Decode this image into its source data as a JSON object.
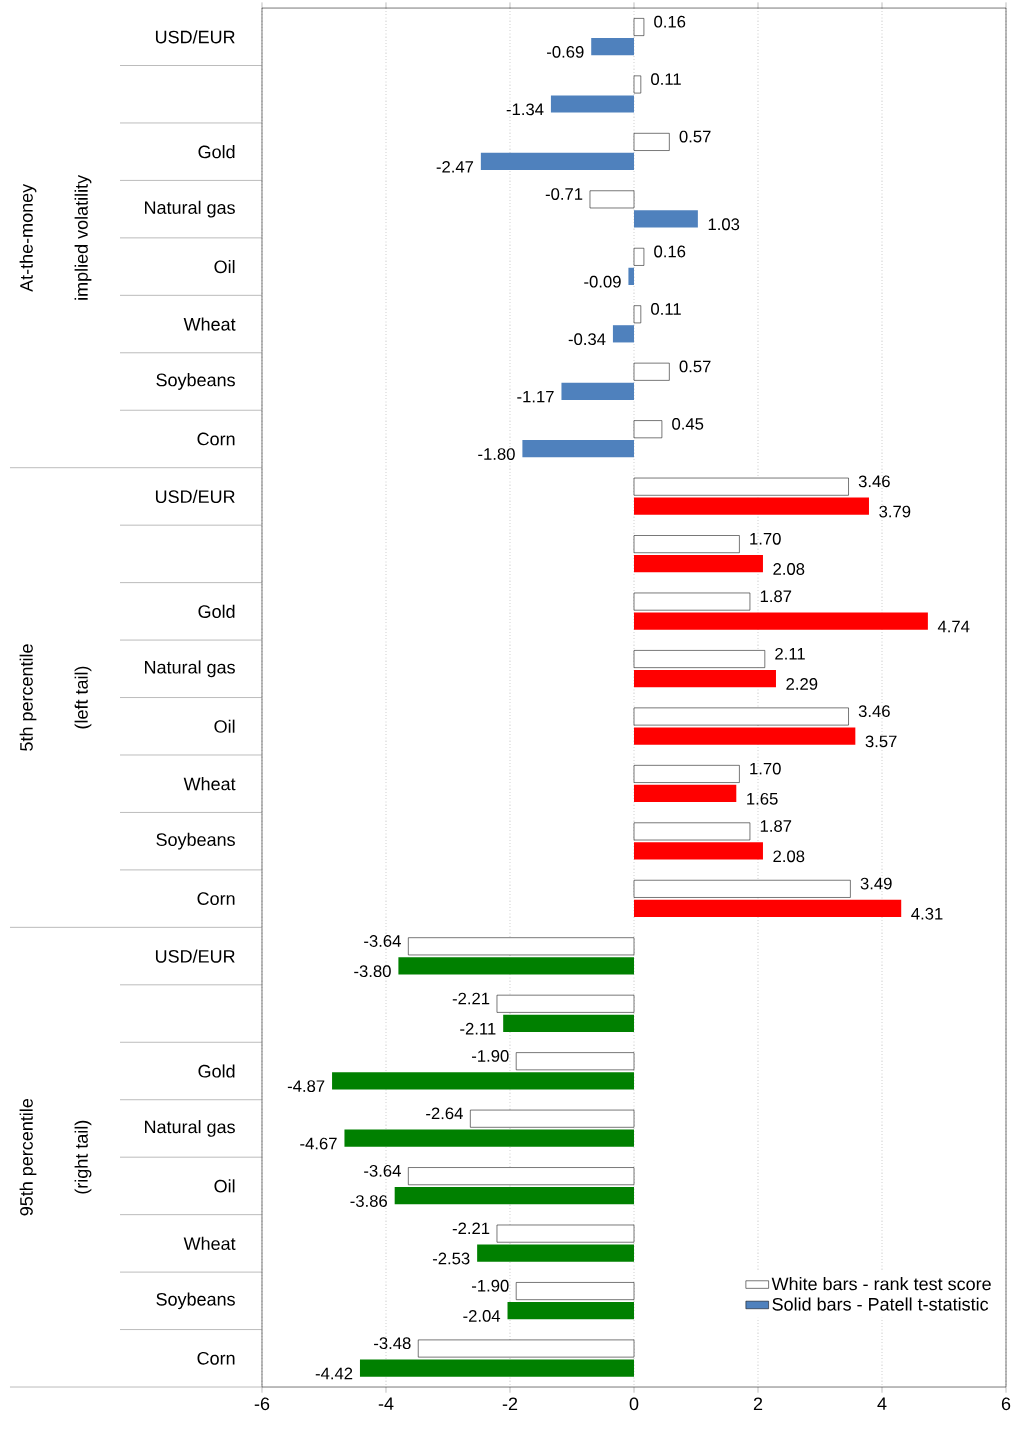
{
  "chart_data": {
    "type": "bar",
    "orientation": "horizontal",
    "categories": [
      "USD/EUR",
      null,
      "Gold",
      "Natural gas",
      "Oil",
      "Wheat",
      "Soybeans",
      "Corn",
      "USD/EUR",
      null,
      "Gold",
      "Natural gas",
      "Oil",
      "Wheat",
      "Soybeans",
      "Corn",
      "USD/EUR",
      null,
      "Gold",
      "Natural gas",
      "Oil",
      "Wheat",
      "Soybeans",
      "Corn"
    ],
    "series": [
      {
        "name": "White bars - rank test score",
        "color": "#ffffff",
        "values": [
          0.16,
          0.11,
          0.57,
          -0.71,
          0.16,
          0.11,
          0.57,
          0.45,
          3.46,
          1.7,
          1.87,
          2.11,
          3.46,
          1.7,
          1.87,
          3.49,
          -3.64,
          -2.21,
          -1.9,
          -2.64,
          -3.64,
          -2.21,
          -1.9,
          -3.48
        ],
        "value_labels": [
          "0.16",
          "0.11",
          "0.57",
          "-0.71",
          "0.16",
          "0.11",
          "0.57",
          "0.45",
          "3.46",
          "1.70",
          "1.87",
          "2.11",
          "3.46",
          "1.70",
          "1.87",
          "3.49",
          "-3.64",
          "-2.21",
          "-1.90",
          "-2.64",
          "-3.64",
          "-2.21",
          "-1.90",
          "-3.48"
        ]
      },
      {
        "name": "Solid bars - Patell t-statistic",
        "colors": [
          "#4f81bd",
          "#4f81bd",
          "#4f81bd",
          "#4f81bd",
          "#4f81bd",
          "#4f81bd",
          "#4f81bd",
          "#4f81bd",
          "#ff0000",
          "#ff0000",
          "#ff0000",
          "#ff0000",
          "#ff0000",
          "#ff0000",
          "#ff0000",
          "#ff0000",
          "#008000",
          "#008000",
          "#008000",
          "#008000",
          "#008000",
          "#008000",
          "#008000",
          "#008000"
        ],
        "values": [
          -0.69,
          -1.34,
          -2.47,
          1.03,
          -0.09,
          -0.34,
          -1.17,
          -1.8,
          3.79,
          2.08,
          4.74,
          2.29,
          3.57,
          1.65,
          2.08,
          4.31,
          -3.8,
          -2.11,
          -4.87,
          -4.67,
          -3.86,
          -2.53,
          -2.04,
          -4.42
        ],
        "value_labels": [
          "-0.69",
          "-1.34",
          "-2.47",
          "1.03",
          "-0.09",
          "-0.34",
          "-1.17",
          "-1.80",
          "3.79",
          "2.08",
          "4.74",
          "2.29",
          "3.57",
          "1.65",
          "2.08",
          "4.31",
          "-3.80",
          "-2.11",
          "-4.87",
          "-4.67",
          "-3.86",
          "-2.53",
          "-2.04",
          "-4.42"
        ]
      }
    ],
    "annotations": [
      "At-the-money",
      "implied volatility",
      "5th percentile",
      "(left tail)",
      "95th percentile",
      "(right tail)"
    ],
    "xlim": [
      -6,
      6
    ],
    "xticks": [
      -6,
      -4,
      -2,
      0,
      2,
      4,
      6
    ],
    "grid": "x",
    "legend": "bottom right"
  }
}
